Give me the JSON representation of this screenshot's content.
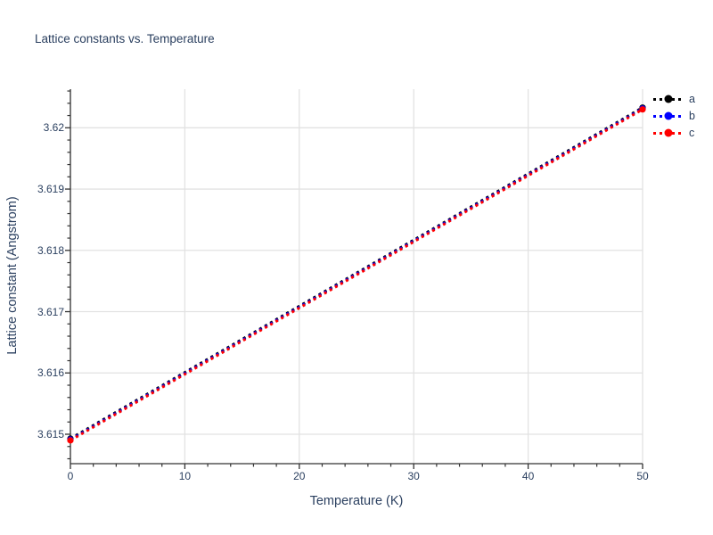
{
  "title": "Lattice constants vs. Temperature",
  "colors": {
    "text": "#2a3f5f",
    "grid": "#e2e2e2",
    "axis": "#333333",
    "background": "#ffffff"
  },
  "chart_data": {
    "type": "line",
    "title": "Lattice constants vs. Temperature",
    "xlabel": "Temperature (K)",
    "ylabel": "Lattice constant (Angstrom)",
    "x": [
      0,
      50
    ],
    "series": [
      {
        "name": "a",
        "color": "#000000",
        "values": [
          3.6149,
          3.6203
        ]
      },
      {
        "name": "b",
        "color": "#0000ff",
        "values": [
          3.6149,
          3.6203
        ]
      },
      {
        "name": "c",
        "color": "#ff0000",
        "values": [
          3.6149,
          3.6203
        ]
      }
    ],
    "xlim": [
      0,
      50
    ],
    "ylim": [
      3.61452,
      3.62063
    ],
    "xticks": [
      0,
      10,
      20,
      30,
      40,
      50
    ],
    "xtick_labels": [
      "0",
      "10",
      "20",
      "30",
      "40",
      "50"
    ],
    "yticks": [
      3.615,
      3.616,
      3.617,
      3.618,
      3.619,
      3.62
    ],
    "ytick_labels": [
      "3.615",
      "3.616",
      "3.617",
      "3.618",
      "3.619",
      "3.62"
    ],
    "x_minor_step": 2,
    "y_minor_step": 0.0002,
    "grid": true,
    "line_style": "dotted",
    "marker": "circle",
    "legend_position": "top-right",
    "legend_labels": [
      "a",
      "b",
      "c"
    ]
  }
}
